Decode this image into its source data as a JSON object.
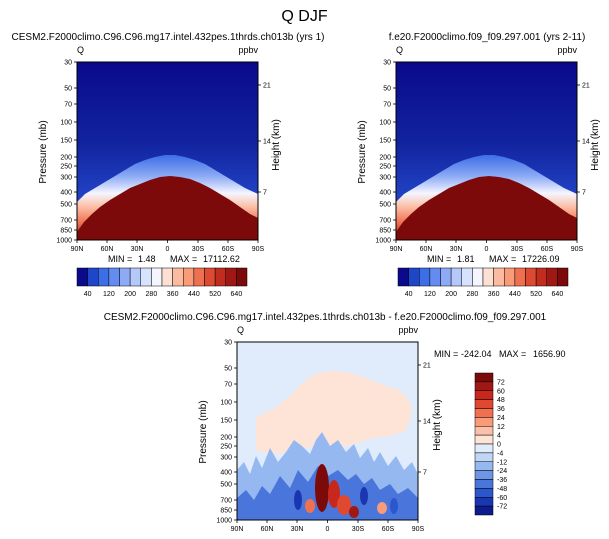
{
  "figure_title": "Q DJF",
  "chart_data": [
    {
      "type": "heatmap",
      "title": "CESM2.F2000climo.C96.C96.mg17.intel.432pes.1thrds.ch013b (yrs 1)",
      "left_label": "Q",
      "right_label": "ppbv",
      "ylabel": "Pressure (mb)",
      "ylabel_right": "Height (km)",
      "x_ticks": [
        "90N",
        "60N",
        "30N",
        "0",
        "30S",
        "60S",
        "90S"
      ],
      "y_ticks": [
        "30",
        "50",
        "70",
        "100",
        "150",
        "200",
        "250",
        "300",
        "400",
        "500",
        "700",
        "850",
        "1000"
      ],
      "height_ticks": [
        "21",
        "14",
        "7"
      ],
      "min_label": "MIN =",
      "min_value": "1.48",
      "max_label": "MAX =",
      "max_value": "17112.62",
      "colorbar_levels": [
        "40",
        "120",
        "200",
        "280",
        "360",
        "440",
        "520",
        "640"
      ],
      "colorbar_colors": [
        "#0a0a8c",
        "#1e46c8",
        "#3c6ee6",
        "#648cf0",
        "#8caaf5",
        "#b4c8fa",
        "#d7e3fd",
        "#f5f5ff",
        "#fde0d2",
        "#fcbba1",
        "#f99a78",
        "#ef7050",
        "#dc4a32",
        "#c02c1e",
        "#a01814",
        "#7c0a0a"
      ]
    },
    {
      "type": "heatmap",
      "title": "f.e20.F2000climo.f09_f09.297.001 (yrs 2-11)",
      "left_label": "Q",
      "right_label": "ppbv",
      "ylabel": "Pressure (mb)",
      "ylabel_right": "Height (km)",
      "x_ticks": [
        "90N",
        "60N",
        "30N",
        "0",
        "30S",
        "60S",
        "90S"
      ],
      "y_ticks": [
        "30",
        "50",
        "70",
        "100",
        "150",
        "200",
        "250",
        "300",
        "400",
        "500",
        "700",
        "850",
        "1000"
      ],
      "height_ticks": [
        "21",
        "14",
        "7"
      ],
      "min_label": "MIN =",
      "min_value": "1.81",
      "max_label": "MAX =",
      "max_value": "17226.09",
      "colorbar_levels": [
        "40",
        "120",
        "200",
        "280",
        "360",
        "440",
        "520",
        "640"
      ],
      "colorbar_colors": [
        "#0a0a8c",
        "#1e46c8",
        "#3c6ee6",
        "#648cf0",
        "#8caaf5",
        "#b4c8fa",
        "#d7e3fd",
        "#f5f5ff",
        "#fde0d2",
        "#fcbba1",
        "#f99a78",
        "#ef7050",
        "#dc4a32",
        "#c02c1e",
        "#a01814",
        "#7c0a0a"
      ]
    },
    {
      "type": "heatmap",
      "title": "CESM2.F2000climo.C96.C96.mg17.intel.432pes.1thrds.ch013b - f.e20.F2000climo.f09_f09.297.001",
      "left_label": "Q",
      "right_label": "ppbv",
      "ylabel": "Pressure (mb)",
      "ylabel_right": "Height (km)",
      "x_ticks": [
        "90N",
        "60N",
        "30N",
        "0",
        "30S",
        "60S",
        "90S"
      ],
      "y_ticks": [
        "30",
        "50",
        "70",
        "100",
        "150",
        "200",
        "250",
        "300",
        "400",
        "500",
        "700",
        "850",
        "1000"
      ],
      "height_ticks": [
        "21",
        "14",
        "7"
      ],
      "min_label": "MIN =",
      "min_value": "-242.04",
      "max_label": "MAX =",
      "max_value": "1656.90",
      "colorbar_levels": [
        "72",
        "60",
        "48",
        "36",
        "24",
        "12",
        "4",
        "0",
        "-4",
        "-12",
        "-24",
        "-36",
        "-48",
        "-60",
        "-72"
      ],
      "colorbar_colors": [
        "#7c0a0a",
        "#a01814",
        "#c8281c",
        "#e04830",
        "#f07050",
        "#f99a78",
        "#fcc0a8",
        "#fde4d6",
        "#e0ecfc",
        "#c0d6f8",
        "#96b8f0",
        "#6e96e8",
        "#4a76dc",
        "#2c56cc",
        "#1a36b0",
        "#0c1c8c"
      ]
    }
  ]
}
